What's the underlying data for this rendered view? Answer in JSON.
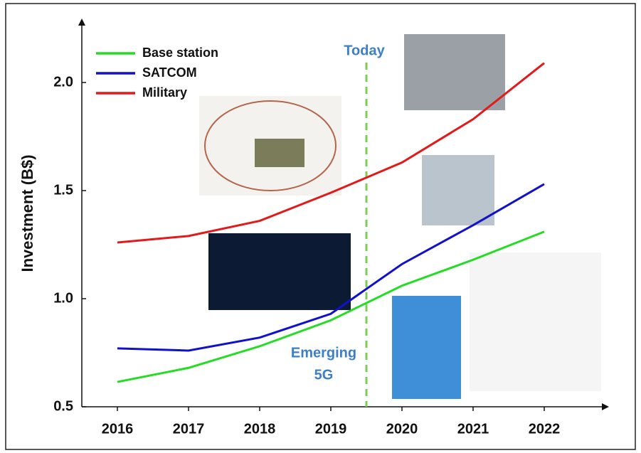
{
  "chart_data": {
    "type": "line",
    "y_label": "Investment (B$)",
    "x": [
      2016,
      2017,
      2018,
      2019,
      2020,
      2021,
      2022
    ],
    "series": [
      {
        "name": "Base station",
        "color": "#22dd22",
        "values": [
          0.615,
          0.68,
          0.78,
          0.9,
          1.06,
          1.18,
          1.31
        ]
      },
      {
        "name": "SATCOM",
        "color": "#1111cc",
        "values": [
          0.77,
          0.76,
          0.82,
          0.93,
          1.16,
          1.34,
          1.53
        ]
      },
      {
        "name": "Military",
        "color": "#e31a1a",
        "values": [
          1.26,
          1.29,
          1.36,
          1.49,
          1.63,
          1.83,
          2.09
        ]
      }
    ],
    "xlim": [
      2015.5,
      2022.85
    ],
    "xticks": [
      2016,
      2017,
      2018,
      2019,
      2020,
      2021,
      2022
    ],
    "ylim": [
      0.5,
      2.25
    ],
    "yticks": [
      {
        "value": 0.5,
        "label": "0.5"
      },
      {
        "value": 1,
        "label": "1.0"
      },
      {
        "value": 1.5,
        "label": "1.5"
      },
      {
        "value": 2,
        "label": "2.0"
      }
    ],
    "today_x": 2019.5,
    "today_label": "Today",
    "emerging_label": [
      "Emerging",
      "5G"
    ],
    "legend": "upper left"
  }
}
